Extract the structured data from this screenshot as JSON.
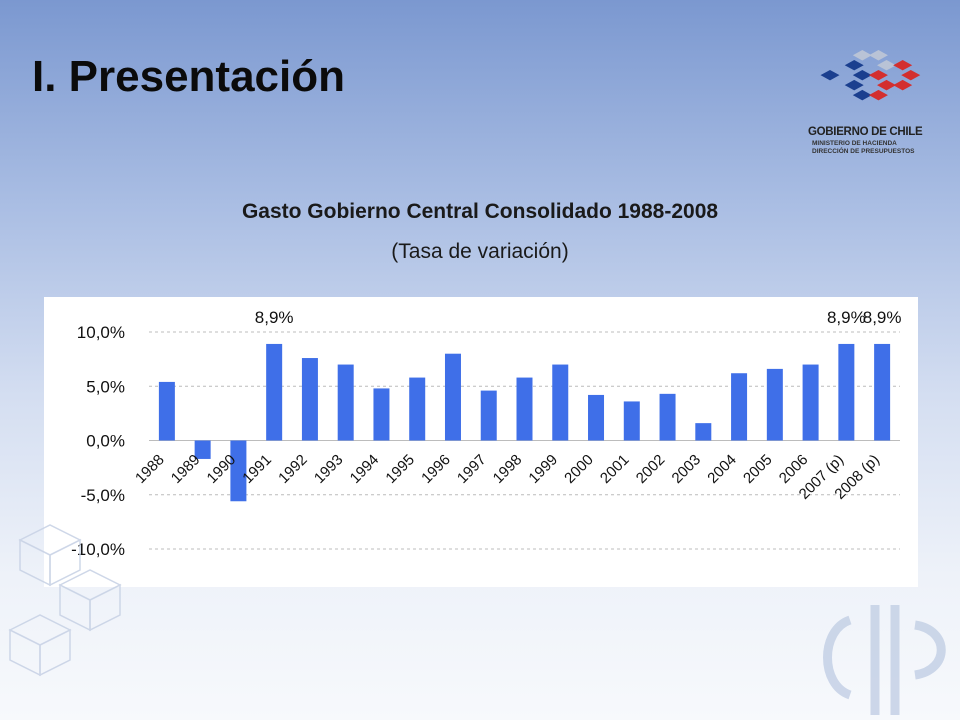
{
  "slide": {
    "title": "I. Presentación"
  },
  "logo": {
    "name": "GOBIERNO DE CHILE",
    "line2": "MINISTERIO DE HACIENDA",
    "line3": "DIRECCIÓN DE PRESUPUESTOS",
    "colors": [
      "#1b3f8f",
      "#5b79b8",
      "#d32f2f",
      "#b9c3d6"
    ]
  },
  "chart_data": {
    "type": "bar",
    "title": "Gasto Gobierno Central Consolidado 1988-2008",
    "subtitle": "(Tasa de variación)",
    "categories": [
      "1988",
      "1989",
      "1990",
      "1991",
      "1992",
      "1993",
      "1994",
      "1995",
      "1996",
      "1997",
      "1998",
      "1999",
      "2000",
      "2001",
      "2002",
      "2003",
      "2004",
      "2005",
      "2006",
      "2007 (p)",
      "2008 (p)"
    ],
    "values": [
      5.4,
      -1.7,
      -5.6,
      8.9,
      7.6,
      7.0,
      4.8,
      5.8,
      8.0,
      4.6,
      5.8,
      7.0,
      4.2,
      3.6,
      4.3,
      1.6,
      6.2,
      6.6,
      7.0,
      8.9,
      8.9
    ],
    "data_labels": [
      {
        "index": 3,
        "text": "8,9%"
      },
      {
        "index": 19,
        "text": "8,9%"
      },
      {
        "index": 20,
        "text": "8,9%"
      }
    ],
    "yticks": [
      10,
      5,
      0,
      -5,
      -10
    ],
    "ytick_labels": [
      "10,0%",
      "5,0%",
      "0,0%",
      "-5,0%",
      "-10,0%"
    ],
    "ylim": [
      -10,
      10
    ],
    "grid": true,
    "bar_color": "#3f6fe8",
    "xlabel": "",
    "ylabel": ""
  }
}
